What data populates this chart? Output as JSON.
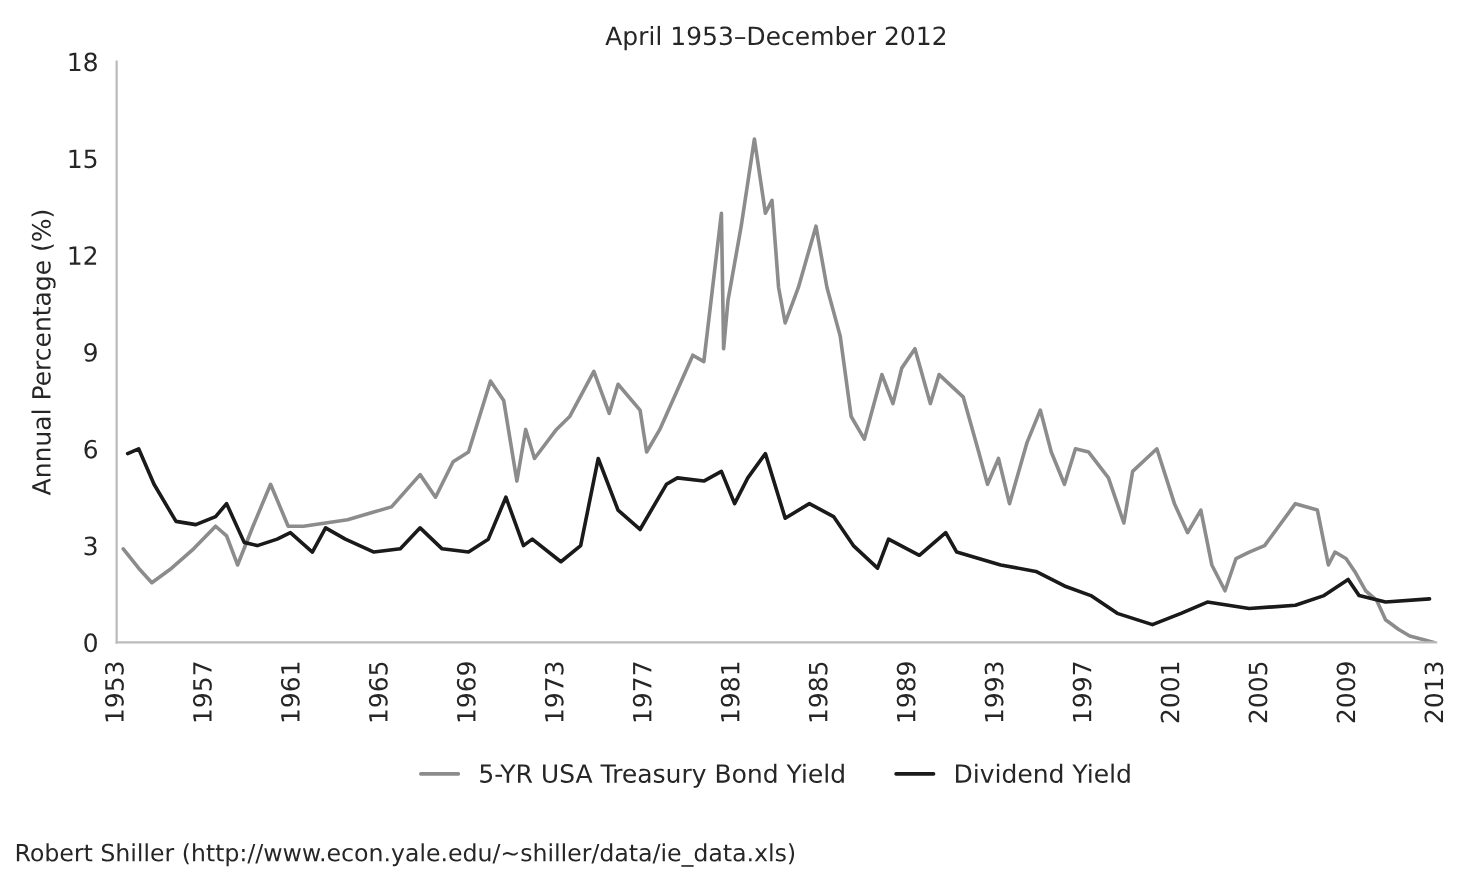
{
  "chart_data": {
    "type": "line",
    "title": "April 1953–December 2012",
    "ylabel": "Annual Percentage (%)",
    "xlim": [
      1953,
      2013
    ],
    "xticks": [
      1953,
      1957,
      1961,
      1965,
      1969,
      1973,
      1977,
      1981,
      1985,
      1989,
      1993,
      1997,
      2001,
      2005,
      2009,
      2013
    ],
    "ylim": [
      0,
      18
    ],
    "yticks": [
      0,
      3,
      6,
      9,
      12,
      15,
      18
    ],
    "grid": false,
    "legend": "bottom",
    "marker": "none",
    "line_style": "solid",
    "series": [
      {
        "name": "5-YR USA Treasury Bond Yield",
        "color": "#8c8c8c",
        "x": [
          1953.3,
          1954.0,
          1954.6,
          1955.5,
          1956.5,
          1957.5,
          1958.0,
          1958.5,
          1959.2,
          1960.0,
          1960.8,
          1961.5,
          1962.5,
          1963.5,
          1964.5,
          1965.5,
          1966.8,
          1967.5,
          1968.3,
          1969.0,
          1970.0,
          1970.6,
          1971.2,
          1971.6,
          1972.0,
          1973.0,
          1973.6,
          1974.7,
          1975.4,
          1975.8,
          1976.8,
          1977.1,
          1977.7,
          1979.2,
          1979.7,
          1980.5,
          1980.6,
          1980.8,
          1981.4,
          1982.0,
          1982.5,
          1982.8,
          1983.1,
          1983.4,
          1984.0,
          1984.8,
          1985.3,
          1985.9,
          1986.4,
          1987.0,
          1987.8,
          1988.3,
          1988.7,
          1989.3,
          1990.0,
          1990.4,
          1991.5,
          1992.2,
          1992.6,
          1993.1,
          1993.6,
          1994.4,
          1995.0,
          1995.5,
          1996.1,
          1996.6,
          1997.2,
          1998.1,
          1998.8,
          1999.2,
          2000.3,
          2001.1,
          2001.7,
          2002.3,
          2002.8,
          2003.4,
          2003.9,
          2004.5,
          2005.2,
          2006.6,
          2007.6,
          2008.1,
          2008.4,
          2008.9,
          2009.3,
          2009.8,
          2010.3,
          2010.7,
          2011.3,
          2011.8,
          2012.9
        ],
        "values": [
          2.9,
          2.3,
          1.85,
          2.3,
          2.9,
          3.6,
          3.3,
          2.4,
          3.6,
          4.9,
          3.6,
          3.6,
          3.7,
          3.8,
          4.0,
          4.2,
          5.2,
          4.5,
          5.6,
          5.9,
          8.1,
          7.5,
          5.0,
          6.6,
          5.7,
          6.6,
          7.0,
          8.4,
          7.1,
          8.0,
          7.2,
          5.9,
          6.6,
          8.9,
          8.7,
          13.3,
          9.1,
          10.6,
          12.9,
          15.6,
          13.3,
          13.7,
          11.0,
          9.9,
          11.0,
          12.9,
          11.0,
          9.5,
          7.0,
          6.3,
          8.3,
          7.4,
          8.5,
          9.1,
          7.4,
          8.3,
          7.6,
          5.9,
          4.9,
          5.7,
          4.3,
          6.2,
          7.2,
          5.9,
          4.9,
          6.0,
          5.9,
          5.1,
          3.7,
          5.3,
          6.0,
          4.3,
          3.4,
          4.1,
          2.4,
          1.6,
          2.6,
          2.8,
          3.0,
          4.3,
          4.1,
          2.4,
          2.8,
          2.6,
          2.2,
          1.6,
          1.3,
          0.7,
          0.4,
          0.2,
          0.0
        ]
      },
      {
        "name": "Dividend Yield",
        "color": "#1a1a1a",
        "x": [
          1953.5,
          1954.0,
          1954.7,
          1955.7,
          1956.6,
          1957.5,
          1958.0,
          1958.8,
          1959.4,
          1960.3,
          1960.9,
          1961.9,
          1962.5,
          1963.4,
          1964.7,
          1965.9,
          1966.8,
          1967.8,
          1969.0,
          1969.9,
          1970.7,
          1971.5,
          1971.9,
          1973.2,
          1974.1,
          1974.9,
          1975.8,
          1976.8,
          1978.0,
          1978.5,
          1979.7,
          1980.5,
          1981.1,
          1981.7,
          1982.5,
          1983.4,
          1984.5,
          1985.6,
          1986.5,
          1987.6,
          1988.1,
          1989.5,
          1990.7,
          1991.2,
          1993.2,
          1994.8,
          1996.1,
          1997.3,
          1998.5,
          2000.1,
          2001.4,
          2002.6,
          2004.5,
          2006.6,
          2007.9,
          2009.0,
          2009.5,
          2010.7,
          2012.7
        ],
        "values": [
          5.85,
          6.0,
          4.9,
          3.75,
          3.65,
          3.9,
          4.3,
          3.1,
          3.0,
          3.2,
          3.4,
          2.8,
          3.55,
          3.2,
          2.8,
          2.9,
          3.55,
          2.9,
          2.8,
          3.2,
          4.5,
          3.0,
          3.2,
          2.5,
          3.0,
          5.7,
          4.1,
          3.5,
          4.9,
          5.1,
          5.0,
          5.3,
          4.3,
          5.1,
          5.85,
          3.85,
          4.3,
          3.9,
          3.0,
          2.3,
          3.2,
          2.7,
          3.4,
          2.8,
          2.4,
          2.2,
          1.75,
          1.45,
          0.9,
          0.55,
          0.9,
          1.25,
          1.05,
          1.15,
          1.45,
          1.95,
          1.45,
          1.25,
          1.35
        ]
      }
    ],
    "annotations": [
      "Robert Shiller (http://www.econ.yale.edu/~shiller/data/ie_data.xls)"
    ]
  }
}
